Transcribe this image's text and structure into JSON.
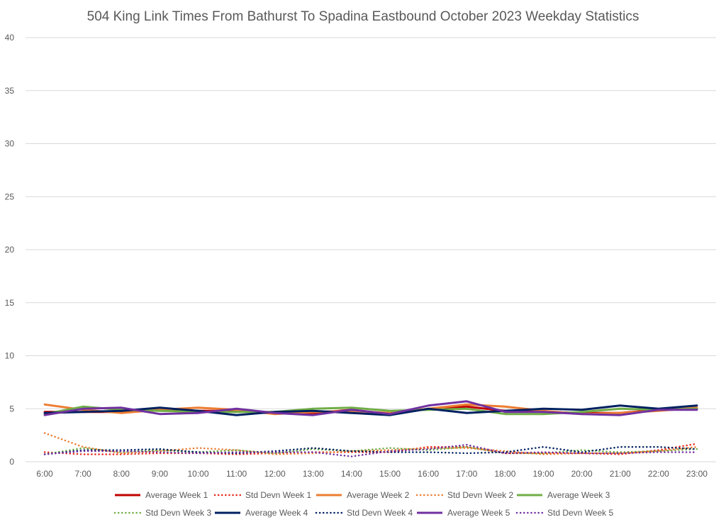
{
  "chart_data": {
    "type": "line",
    "title": "504 King Link Times From Bathurst To Spadina Eastbound October 2023 Weekday Statistics",
    "xlabel": "",
    "ylabel": "",
    "ylim": [
      0,
      40
    ],
    "yticks": [
      "0",
      "5",
      "10",
      "15",
      "20",
      "25",
      "30",
      "35",
      "40"
    ],
    "grid": true,
    "legend_position": "bottom",
    "categories": [
      "6:00",
      "7:00",
      "8:00",
      "9:00",
      "10:00",
      "11:00",
      "12:00",
      "13:00",
      "14:00",
      "15:00",
      "16:00",
      "17:00",
      "18:00",
      "19:00",
      "20:00",
      "21:00",
      "22:00",
      "23:00"
    ],
    "series": [
      {
        "name": "Average Week 1",
        "style": "solid",
        "color": "#c00000",
        "values": [
          4.7,
          4.7,
          4.7,
          4.9,
          4.8,
          4.8,
          4.6,
          4.6,
          4.9,
          4.5,
          5.0,
          5.2,
          4.8,
          4.7,
          4.6,
          4.6,
          4.9,
          5.0
        ]
      },
      {
        "name": "Std Devn Week 1",
        "style": "dotted",
        "color": "#e8271a",
        "values": [
          0.9,
          0.7,
          0.7,
          0.8,
          0.8,
          0.7,
          0.8,
          0.9,
          0.9,
          0.9,
          1.4,
          1.4,
          0.8,
          0.8,
          0.8,
          0.7,
          1.1,
          1.7
        ]
      },
      {
        "name": "Average Week 2",
        "style": "solid",
        "color": "#ed7d31",
        "values": [
          5.4,
          4.9,
          4.6,
          4.9,
          5.1,
          4.9,
          4.5,
          4.7,
          4.8,
          4.6,
          5.0,
          5.4,
          5.2,
          4.8,
          4.5,
          4.6,
          4.8,
          5.1
        ]
      },
      {
        "name": "Std Devn Week 2",
        "style": "dotted",
        "color": "#ed7d31",
        "values": [
          2.7,
          1.4,
          0.8,
          1.0,
          1.3,
          1.1,
          0.7,
          0.8,
          1.0,
          1.1,
          1.3,
          1.3,
          1.0,
          0.7,
          0.8,
          0.8,
          1.0,
          1.4
        ]
      },
      {
        "name": "Average Week 3",
        "style": "solid",
        "color": "#70ad47",
        "values": [
          4.5,
          5.2,
          4.9,
          4.8,
          4.7,
          4.7,
          4.7,
          5.0,
          5.1,
          4.8,
          4.9,
          5.0,
          4.5,
          4.5,
          4.7,
          5.0,
          4.9,
          5.0
        ]
      },
      {
        "name": "Std Devn Week 3",
        "style": "dotted",
        "color": "#70ad47",
        "values": [
          0.7,
          1.3,
          0.9,
          1.1,
          0.9,
          1.1,
          0.8,
          1.2,
          1.0,
          1.3,
          1.1,
          1.4,
          0.8,
          0.8,
          1.1,
          0.9,
          1.0,
          1.2
        ]
      },
      {
        "name": "Average Week 4",
        "style": "solid",
        "color": "#002060",
        "values": [
          4.6,
          4.7,
          4.8,
          5.1,
          4.8,
          4.4,
          4.7,
          4.8,
          4.6,
          4.4,
          5.0,
          4.6,
          4.8,
          5.0,
          4.9,
          5.3,
          5.0,
          5.3
        ]
      },
      {
        "name": "Std Devn Week 4",
        "style": "dotted",
        "color": "#002060",
        "values": [
          0.7,
          1.1,
          1.1,
          1.2,
          0.9,
          0.8,
          1.0,
          1.3,
          1.0,
          0.9,
          0.9,
          0.8,
          0.9,
          1.4,
          0.9,
          1.4,
          1.4,
          1.2
        ]
      },
      {
        "name": "Average Week 5",
        "style": "solid",
        "color": "#7030a0",
        "values": [
          4.4,
          5.0,
          5.1,
          4.5,
          4.6,
          5.0,
          4.6,
          4.4,
          4.9,
          4.5,
          5.3,
          5.7,
          4.7,
          4.7,
          4.5,
          4.4,
          4.9,
          4.9
        ]
      },
      {
        "name": "Std Devn Week 5",
        "style": "dotted",
        "color": "#7030a0",
        "values": [
          0.7,
          1.0,
          1.0,
          0.9,
          0.8,
          0.9,
          0.9,
          0.9,
          0.5,
          1.0,
          1.2,
          1.6,
          0.8,
          0.9,
          0.8,
          0.8,
          0.9,
          0.9
        ]
      }
    ]
  }
}
